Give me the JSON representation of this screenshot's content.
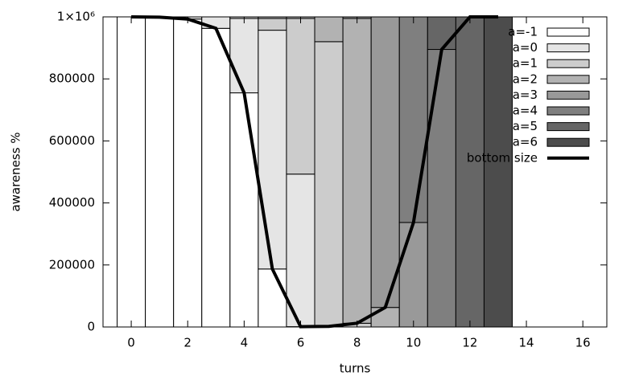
{
  "chart_data": {
    "type": "stacked_bar_line",
    "x_label": "turns",
    "y_label": "awareness %",
    "x": [
      0,
      1,
      2,
      3,
      4,
      5,
      6,
      7,
      8,
      9,
      10,
      11,
      12,
      13
    ],
    "series": [
      {
        "name": "a=-1",
        "color": "#ffffff",
        "values": [
          1000000,
          999000,
          993000,
          963000,
          755000,
          187000,
          1000,
          0,
          0,
          0,
          0,
          0,
          0,
          0
        ]
      },
      {
        "name": "a=0",
        "color": "#e5e5e5",
        "values": [
          0,
          1000,
          7000,
          37000,
          240000,
          770000,
          492000,
          2000,
          0,
          0,
          0,
          0,
          0,
          0
        ]
      },
      {
        "name": "a=1",
        "color": "#cccccc",
        "values": [
          0,
          0,
          0,
          0,
          5000,
          38000,
          502000,
          918000,
          12000,
          0,
          0,
          0,
          0,
          0
        ]
      },
      {
        "name": "a=2",
        "color": "#b2b2b2",
        "values": [
          0,
          0,
          0,
          0,
          0,
          5000,
          5000,
          80000,
          983000,
          63000,
          0,
          0,
          0,
          0
        ]
      },
      {
        "name": "a=3",
        "color": "#999999",
        "values": [
          0,
          0,
          0,
          0,
          0,
          0,
          0,
          0,
          5000,
          937000,
          337000,
          0,
          0,
          0
        ]
      },
      {
        "name": "a=4",
        "color": "#7f7f7f",
        "values": [
          0,
          0,
          0,
          0,
          0,
          0,
          0,
          0,
          0,
          0,
          663000,
          895000,
          0,
          0
        ]
      },
      {
        "name": "a=5",
        "color": "#666666",
        "values": [
          0,
          0,
          0,
          0,
          0,
          0,
          0,
          0,
          0,
          0,
          0,
          105000,
          1000000,
          0
        ]
      },
      {
        "name": "a=6",
        "color": "#4c4c4c",
        "values": [
          0,
          0,
          0,
          0,
          0,
          0,
          0,
          0,
          0,
          0,
          0,
          0,
          0,
          1000000
        ]
      }
    ],
    "line": {
      "name": "bottom size",
      "color": "#000000",
      "values": [
        1000000,
        999000,
        993000,
        963000,
        755000,
        187000,
        1000,
        2000,
        12000,
        63000,
        337000,
        895000,
        1000000,
        1000000
      ]
    },
    "xlim": [
      -1,
      16.85
    ],
    "xticks": [
      0,
      2,
      4,
      6,
      8,
      10,
      12,
      14,
      16
    ],
    "ylim": [
      0,
      1000000
    ],
    "yticks": [
      0,
      200000,
      400000,
      600000,
      800000,
      {
        "value": 1000000,
        "label": "1×10⁶"
      }
    ],
    "legend": "top-right"
  }
}
